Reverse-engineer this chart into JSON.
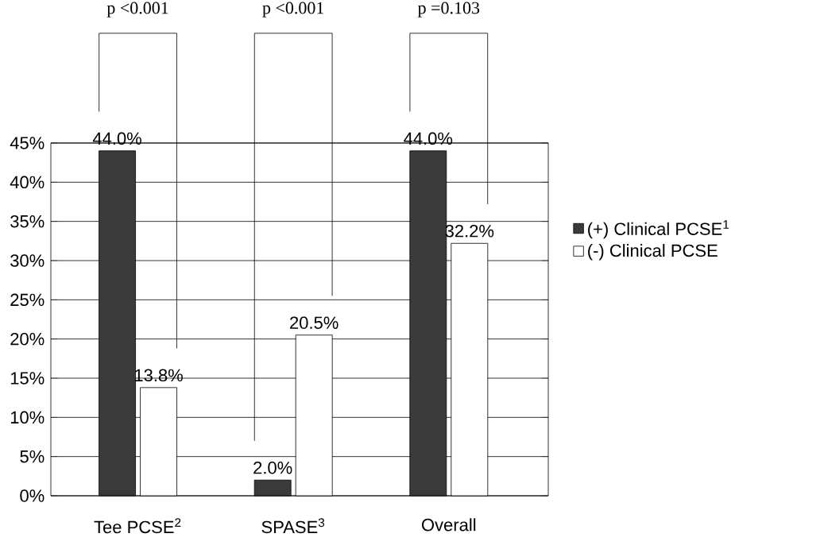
{
  "chart_data": {
    "type": "bar",
    "categories": [
      "Tee PCSE$^{2}$",
      "SPASE$^{3}$",
      "Overall"
    ],
    "series": [
      {
        "name": "(+) Clinical PCSE$^{1}$",
        "color": "#3a3a3a",
        "values": [
          44.0,
          2.0,
          44.0
        ],
        "value_labels": [
          "44.0%",
          "2.0%",
          "44.0%"
        ]
      },
      {
        "name": "(-) Clinical PCSE",
        "color": "#ffffff",
        "values": [
          13.8,
          20.5,
          32.2
        ],
        "value_labels": [
          "13.8%",
          "20.5%",
          "32.2%"
        ]
      }
    ],
    "ylim": [
      0,
      45
    ],
    "yticks": [
      {
        "value": 0,
        "label": "0%"
      },
      {
        "value": 5,
        "label": "5%"
      },
      {
        "value": 10,
        "label": "10%"
      },
      {
        "value": 15,
        "label": "15%"
      },
      {
        "value": 20,
        "label": "20%"
      },
      {
        "value": 25,
        "label": "25%"
      },
      {
        "value": 30,
        "label": "30%"
      },
      {
        "value": 35,
        "label": "35%"
      },
      {
        "value": 40,
        "label": "40%"
      },
      {
        "value": 45,
        "label": "45%"
      }
    ],
    "grid": "y",
    "legend": "right",
    "annotations": [
      "p <0.001",
      "p <0.001",
      "p =0.103"
    ]
  }
}
